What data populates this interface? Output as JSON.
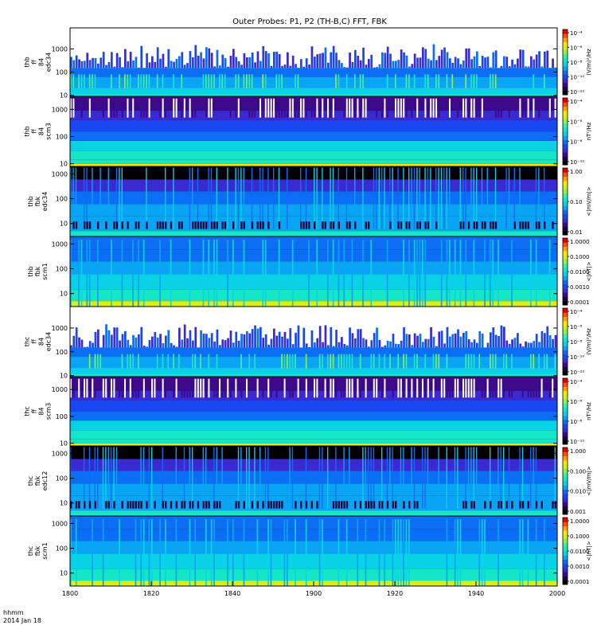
{
  "title": "Outer Probes: P1, P2 (TH-B,C) FFT, FBK",
  "footer": {
    "line1": "hhmm",
    "line2": "2014 Jan 18"
  },
  "colors": {
    "colormap": [
      "#000000",
      "#1a0a40",
      "#3a0a8a",
      "#3a2ad0",
      "#1a48f0",
      "#0b6ef5",
      "#0aa4f5",
      "#0ad2e6",
      "#14e6c8",
      "#3cf0a0",
      "#8cf050",
      "#d2f01e",
      "#ffe600",
      "#ffa000",
      "#ff5000",
      "#e60000"
    ],
    "frame": "#000000",
    "background": "#ffffff"
  },
  "chart_data": {
    "type": "heatmap",
    "x_axis": {
      "label": "hhmm",
      "date": "2014 Jan 18",
      "range": [
        "1800",
        "2000"
      ],
      "ticks": [
        "1800",
        "1820",
        "1840",
        "1900",
        "1920",
        "1940",
        "2000"
      ]
    },
    "panels": [
      {
        "ylabel": [
          "thb",
          "ff",
          "84",
          "edc34"
        ],
        "yticks": [
          "1000",
          "100",
          "10"
        ],
        "yrange_hz": [
          9,
          8000
        ],
        "cbar_ticks": [
          "10⁻⁴",
          "10⁻⁶",
          "10⁻⁸",
          "10⁻¹⁰",
          "10⁻¹²"
        ],
        "cbar_label": "(V/m)²/Hz",
        "kind": "ff_edc"
      },
      {
        "ylabel": [
          "thb",
          "ff",
          "84",
          "scm3"
        ],
        "yticks": [
          "1000",
          "100",
          "10"
        ],
        "yrange_hz": [
          8,
          3000
        ],
        "cbar_ticks": [
          "10⁻⁴",
          "10⁻⁶",
          "10⁻⁸",
          "10⁻¹⁰"
        ],
        "cbar_label": "nT²/Hz",
        "kind": "ff_scm"
      },
      {
        "ylabel": [
          "thb",
          "fbk",
          "edc34"
        ],
        "yticks": [
          "1000",
          "100",
          "10"
        ],
        "yrange_hz": [
          3,
          2000
        ],
        "cbar_ticks": [
          "1.00",
          "0.10",
          "0.01"
        ],
        "cbar_label": "<|mV/m|>",
        "kind": "fbk_edc"
      },
      {
        "ylabel": [
          "thb",
          "fbk",
          "scm1"
        ],
        "yticks": [
          "1000",
          "100",
          "10"
        ],
        "yrange_hz": [
          3,
          2000
        ],
        "cbar_ticks": [
          "1.0000",
          "0.1000",
          "0.0100",
          "0.0010",
          "0.0001"
        ],
        "cbar_label": "<|nT|>",
        "kind": "fbk_scm"
      },
      {
        "ylabel": [
          "thc",
          "ff",
          "84",
          "edc34"
        ],
        "yticks": [
          "1000",
          "100",
          "10"
        ],
        "yrange_hz": [
          9,
          8000
        ],
        "cbar_ticks": [
          "10⁻⁴",
          "10⁻⁶",
          "10⁻⁸",
          "10⁻¹⁰",
          "10⁻¹²"
        ],
        "cbar_label": "(V/m)²/Hz",
        "kind": "ff_edc"
      },
      {
        "ylabel": [
          "thc",
          "ff",
          "84",
          "scm3"
        ],
        "yticks": [
          "1000",
          "100",
          "10"
        ],
        "yrange_hz": [
          8,
          3000
        ],
        "cbar_ticks": [
          "10⁻⁴",
          "10⁻⁶",
          "10⁻⁸",
          "10⁻¹⁰"
        ],
        "cbar_label": "nT²/Hz",
        "kind": "ff_scm"
      },
      {
        "ylabel": [
          "thc",
          "fbk",
          "edc12"
        ],
        "yticks": [
          "1000",
          "100",
          "10"
        ],
        "yrange_hz": [
          3,
          2000
        ],
        "cbar_ticks": [
          "1.000",
          "0.100",
          "0.010",
          "0.001"
        ],
        "cbar_label": "<|mV/m|>",
        "kind": "fbk_edc"
      },
      {
        "ylabel": [
          "thc",
          "fbk",
          "scm1"
        ],
        "yticks": [
          "1000",
          "100",
          "10"
        ],
        "yrange_hz": [
          3,
          2000
        ],
        "cbar_ticks": [
          "1.0000",
          "0.1000",
          "0.0100",
          "0.0010",
          "0.0001"
        ],
        "cbar_label": "<|nT|>",
        "kind": "fbk_scm"
      }
    ]
  }
}
